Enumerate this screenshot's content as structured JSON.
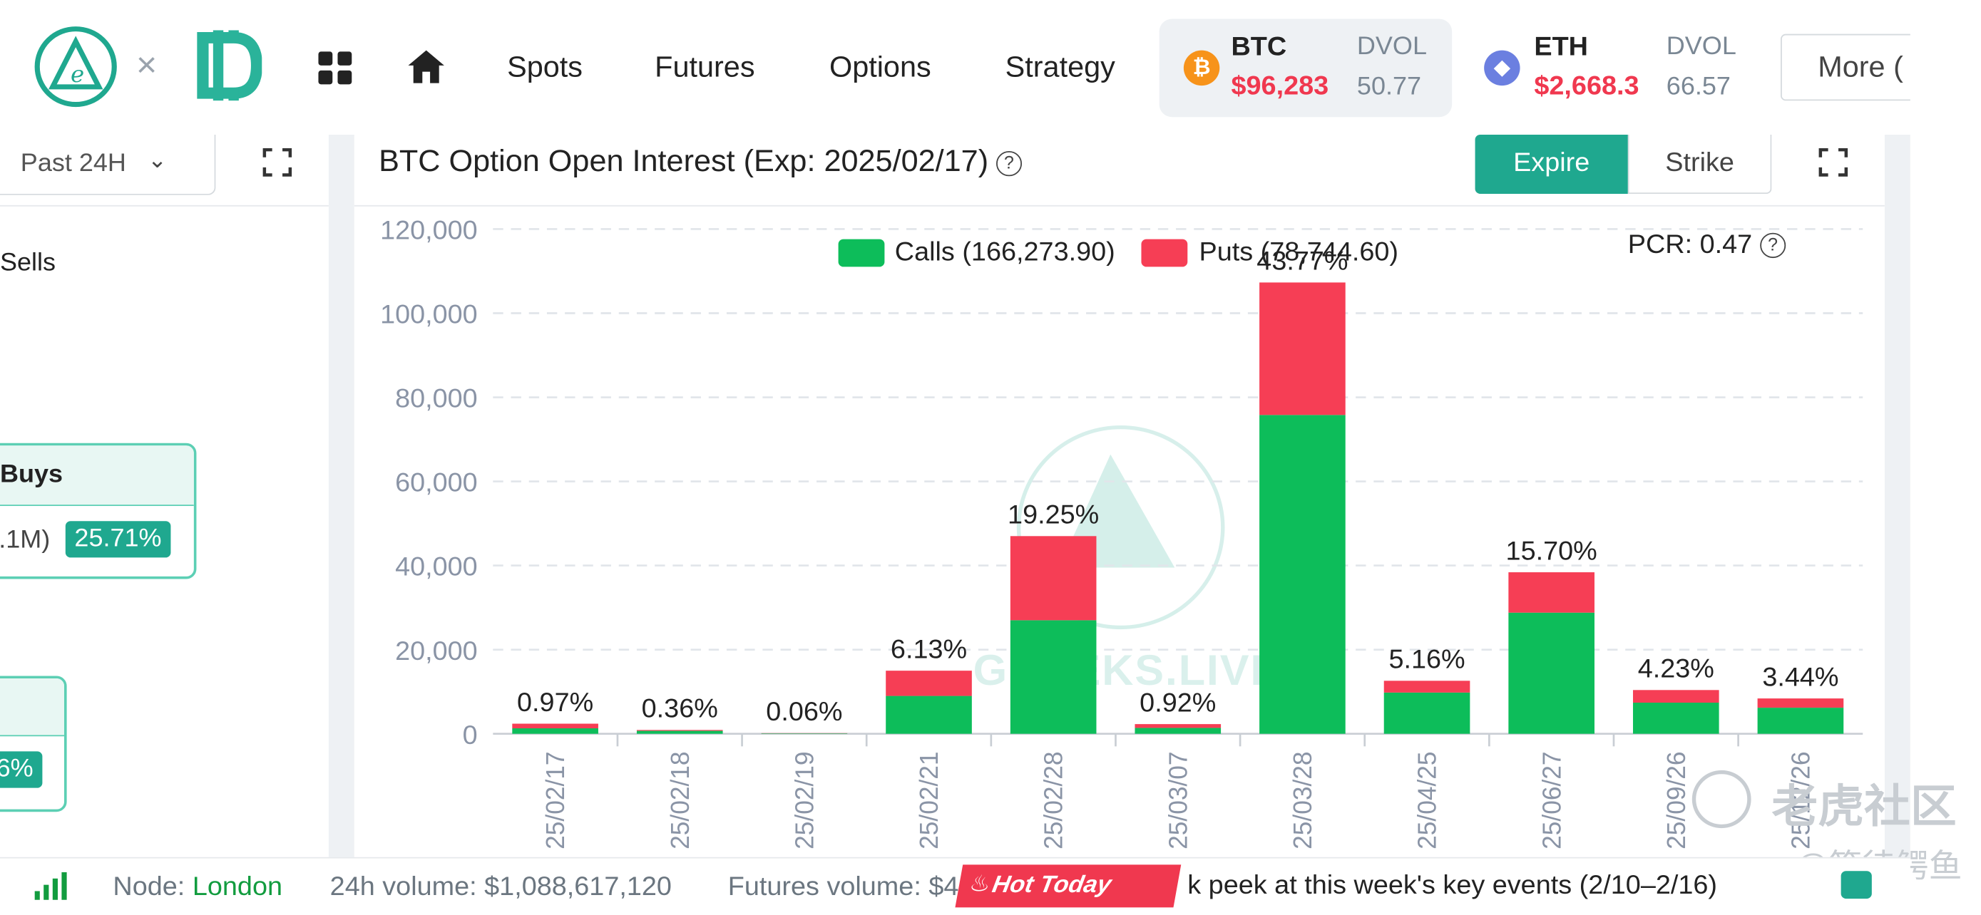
{
  "nav": {
    "items": [
      "Spots",
      "Futures",
      "Options",
      "Strategy"
    ],
    "more_label": "More"
  },
  "tickers": [
    {
      "symbol": "BTC",
      "price": "$96,283",
      "dvol_label": "DVOL",
      "dvol": "50.77"
    },
    {
      "symbol": "ETH",
      "price": "$2,668.3",
      "dvol_label": "DVOL",
      "dvol": "66.57"
    }
  ],
  "left_panel": {
    "period": "Past 24H",
    "sells_label": "Sells",
    "buys_label": "Buys",
    "buys_volume": ".1M)",
    "buys_pct": "25.71%",
    "card2_pct": "6%"
  },
  "chart_header": {
    "title": "BTC Option Open Interest (Exp: 2025/02/17)",
    "tab_expire": "Expire",
    "tab_strike": "Strike"
  },
  "legend": {
    "calls": "Calls (166,273.90)",
    "puts": "Puts (78,744.60)",
    "pcr": "PCR: 0.47"
  },
  "chart_data": {
    "type": "bar",
    "stacked": true,
    "categories": [
      "25/02/17",
      "25/02/18",
      "25/02/19",
      "25/02/21",
      "25/02/28",
      "25/03/07",
      "25/03/28",
      "25/04/25",
      "25/06/27",
      "25/09/26",
      "25/12/26"
    ],
    "series": [
      {
        "name": "Calls",
        "color": "#0dbd5a",
        "values": [
          1300,
          700,
          100,
          9000,
          27000,
          1400,
          75800,
          9800,
          28800,
          7400,
          6200
        ]
      },
      {
        "name": "Puts",
        "color": "#f63e55",
        "values": [
          1100,
          200,
          50,
          6000,
          20000,
          900,
          31500,
          2800,
          9600,
          3000,
          2200
        ]
      }
    ],
    "bar_labels": [
      "0.97%",
      "0.36%",
      "0.06%",
      "6.13%",
      "19.25%",
      "0.92%",
      "43.77%",
      "5.16%",
      "15.70%",
      "4.23%",
      "3.44%"
    ],
    "y_ticks": [
      "0",
      "20,000",
      "40,000",
      "60,000",
      "80,000",
      "100,000",
      "120,000"
    ],
    "ylim": [
      0,
      120000
    ],
    "grid": true,
    "legend_position": "top"
  },
  "watermarks": {
    "chart_text": "GREEKS.LIVE",
    "community": "老虎社区",
    "user": "@等待鳄鱼"
  },
  "status": {
    "node_label": "Node:",
    "node_value": "London",
    "volume_24h": "24h volume: $1,088,617,120",
    "futures_volume": "Futures volume: $4",
    "hot_label": "Hot Today",
    "news": "k peek at this week's key events (2/10–2/16)"
  },
  "colors": {
    "accent": "#1fa88f",
    "calls": "#0dbd5a",
    "puts": "#f63e55",
    "price": "#f0384f"
  }
}
